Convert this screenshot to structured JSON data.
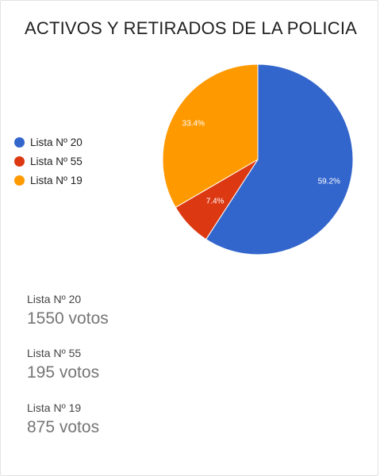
{
  "chart_data": {
    "type": "pie",
    "title": "ACTIVOS Y RETIRADOS DE LA POLICIA",
    "legend_position": "left",
    "slices": [
      {
        "label": "Lista Nº 20",
        "value": 1550,
        "percent_label": "59.2%",
        "color": "#3366cc"
      },
      {
        "label": "Lista Nº 55",
        "value": 195,
        "percent_label": "7.4%",
        "color": "#dc3912"
      },
      {
        "label": "Lista Nº 19",
        "value": 875,
        "percent_label": "33.4%",
        "color": "#ff9900"
      }
    ]
  },
  "stats": [
    {
      "name": "Lista Nº 20",
      "value": "1550 votos"
    },
    {
      "name": "Lista Nº 55",
      "value": "195 votos"
    },
    {
      "name": "Lista Nº 19",
      "value": "875 votos"
    }
  ]
}
